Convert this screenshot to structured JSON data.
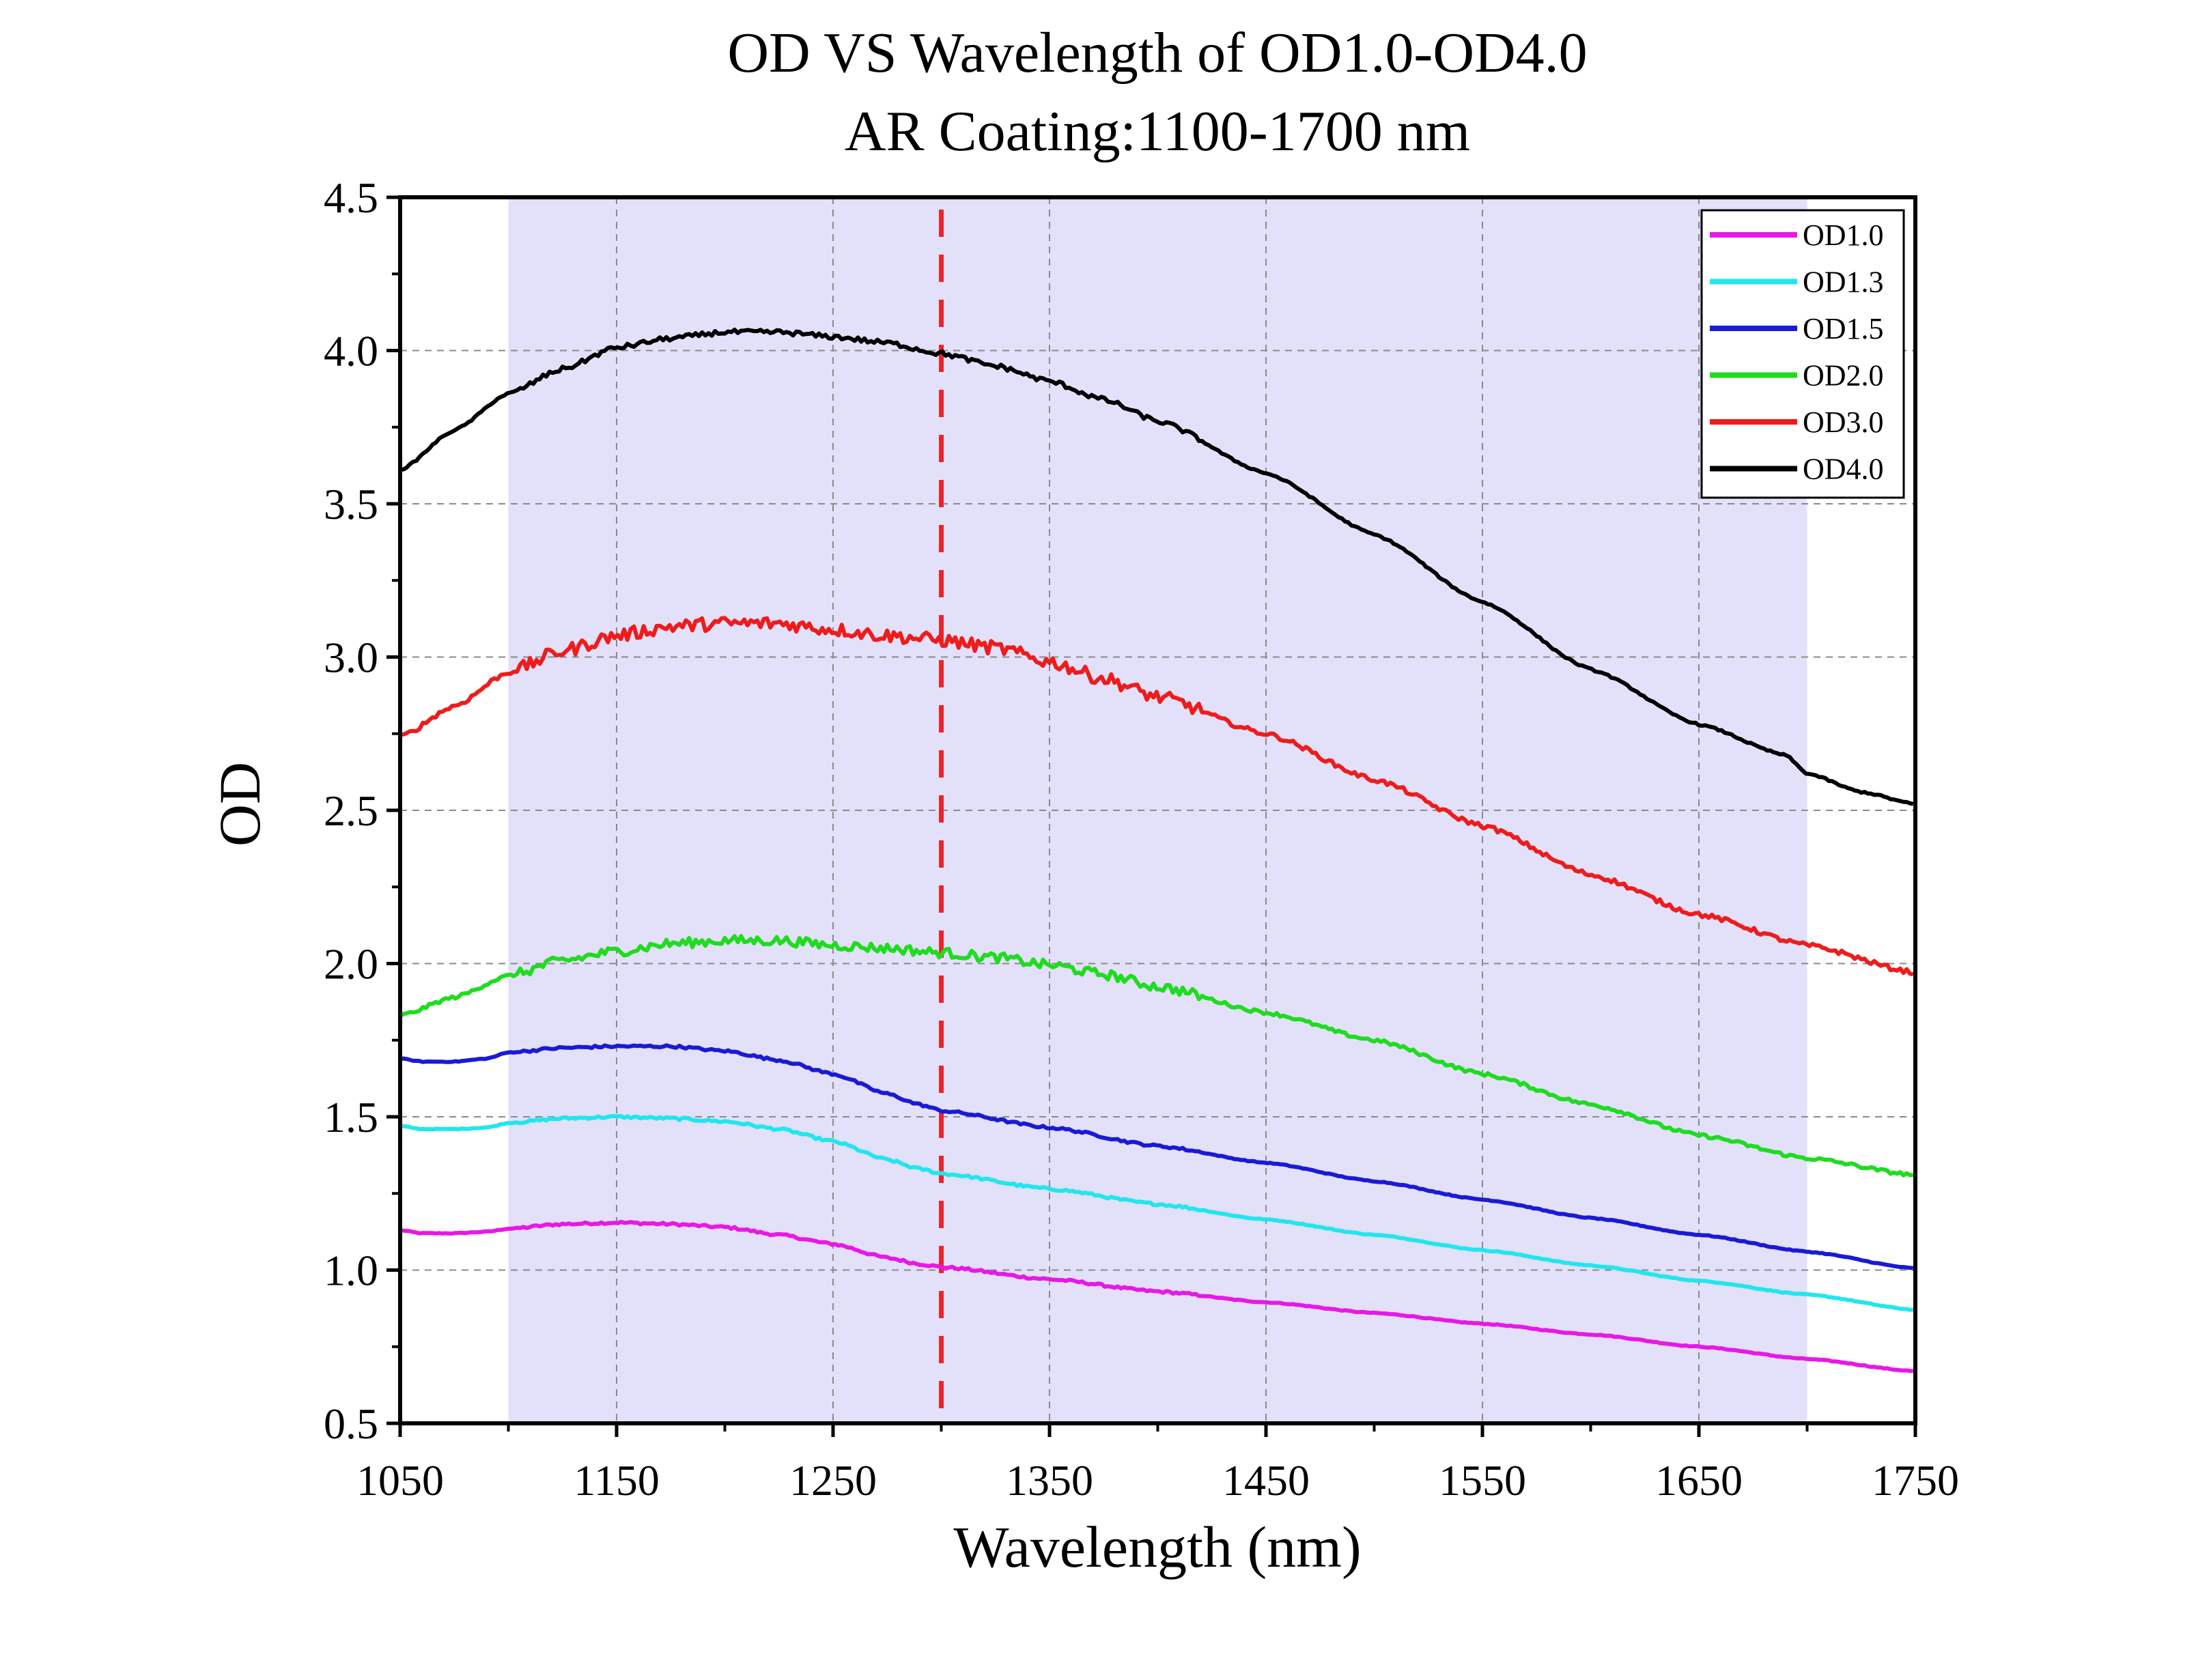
{
  "chart_data": {
    "type": "line",
    "title": "OD VS Wavelength of OD1.0-OD4.0",
    "subtitle": "AR Coating:1100-1700 nm",
    "xlabel": "Wavelength (nm)",
    "ylabel": "OD",
    "xlim": [
      1050,
      1750
    ],
    "ylim": [
      0.5,
      4.5
    ],
    "xticks": [
      "1050",
      "1150",
      "1250",
      "1350",
      "1450",
      "1550",
      "1650",
      "1750"
    ],
    "yticks": [
      "0.5",
      "1.0",
      "1.5",
      "2.0",
      "2.5",
      "3.0",
      "3.5",
      "4.0",
      "4.5"
    ],
    "grid": true,
    "legend_position": "top-right",
    "shaded_region": {
      "x_from": 1100,
      "x_to": 1700,
      "color": "#e3e0fa"
    },
    "reference_line": {
      "x": 1300,
      "color": "#e8262a",
      "style": "dashed"
    },
    "series": [
      {
        "name": "OD1.0",
        "color": "#e619e6",
        "noise": 0.004,
        "x": [
          1050,
          1060,
          1075,
          1090,
          1100,
          1125,
          1150,
          1175,
          1200,
          1225,
          1250,
          1275,
          1290,
          1300,
          1350,
          1400,
          1450,
          1500,
          1550,
          1600,
          1650,
          1700,
          1750
        ],
        "y": [
          1.13,
          1.12,
          1.12,
          1.125,
          1.135,
          1.15,
          1.155,
          1.15,
          1.14,
          1.115,
          1.085,
          1.04,
          1.02,
          1.01,
          0.97,
          0.93,
          0.895,
          0.86,
          0.825,
          0.79,
          0.75,
          0.71,
          0.67
        ]
      },
      {
        "name": "OD1.3",
        "color": "#22e6ee",
        "noise": 0.004,
        "x": [
          1050,
          1060,
          1075,
          1090,
          1100,
          1125,
          1150,
          1175,
          1200,
          1225,
          1250,
          1275,
          1290,
          1300,
          1350,
          1400,
          1450,
          1500,
          1550,
          1600,
          1650,
          1700,
          1750
        ],
        "y": [
          1.47,
          1.46,
          1.46,
          1.465,
          1.48,
          1.495,
          1.5,
          1.495,
          1.485,
          1.46,
          1.42,
          1.36,
          1.33,
          1.315,
          1.265,
          1.215,
          1.165,
          1.115,
          1.065,
          1.015,
          0.965,
          0.92,
          0.87
        ]
      },
      {
        "name": "OD1.5",
        "color": "#1a1ad6",
        "noise": 0.004,
        "x": [
          1050,
          1060,
          1075,
          1090,
          1100,
          1125,
          1150,
          1175,
          1200,
          1225,
          1250,
          1275,
          1290,
          1300,
          1350,
          1400,
          1450,
          1500,
          1550,
          1600,
          1650,
          1700,
          1750
        ],
        "y": [
          1.69,
          1.68,
          1.68,
          1.69,
          1.71,
          1.725,
          1.73,
          1.73,
          1.715,
          1.685,
          1.64,
          1.575,
          1.54,
          1.52,
          1.465,
          1.405,
          1.35,
          1.29,
          1.23,
          1.17,
          1.115,
          1.06,
          1.005
        ]
      },
      {
        "name": "OD2.0",
        "color": "#1fdc1f",
        "noise": 0.016,
        "x": [
          1050,
          1075,
          1100,
          1125,
          1150,
          1175,
          1200,
          1225,
          1250,
          1275,
          1300,
          1325,
          1350,
          1375,
          1400,
          1450,
          1500,
          1550,
          1600,
          1650,
          1700,
          1750
        ],
        "y": [
          1.83,
          1.89,
          1.96,
          2.01,
          2.04,
          2.065,
          2.075,
          2.075,
          2.06,
          2.05,
          2.035,
          2.02,
          1.995,
          1.965,
          1.925,
          1.84,
          1.75,
          1.64,
          1.54,
          1.44,
          1.365,
          1.31
        ]
      },
      {
        "name": "OD3.0",
        "color": "#ee1c1c",
        "noise": 0.022,
        "x": [
          1050,
          1075,
          1100,
          1125,
          1150,
          1175,
          1200,
          1225,
          1250,
          1275,
          1300,
          1325,
          1350,
          1375,
          1400,
          1450,
          1500,
          1550,
          1600,
          1650,
          1700,
          1750
        ],
        "y": [
          2.74,
          2.84,
          2.95,
          3.02,
          3.07,
          3.1,
          3.11,
          3.11,
          3.09,
          3.07,
          3.055,
          3.03,
          2.985,
          2.93,
          2.87,
          2.75,
          2.6,
          2.45,
          2.29,
          2.16,
          2.06,
          1.97
        ]
      },
      {
        "name": "OD4.0",
        "color": "#000000",
        "noise": 0.008,
        "x": [
          1050,
          1075,
          1100,
          1125,
          1150,
          1175,
          1200,
          1225,
          1250,
          1275,
          1300,
          1325,
          1350,
          1375,
          1400,
          1450,
          1500,
          1550,
          1600,
          1650,
          1690,
          1700,
          1725,
          1750
        ],
        "y": [
          3.61,
          3.74,
          3.86,
          3.94,
          4.01,
          4.04,
          4.06,
          4.06,
          4.045,
          4.025,
          3.99,
          3.95,
          3.9,
          3.84,
          3.77,
          3.6,
          3.4,
          3.18,
          2.96,
          2.78,
          2.68,
          2.62,
          2.56,
          2.52
        ]
      }
    ]
  }
}
